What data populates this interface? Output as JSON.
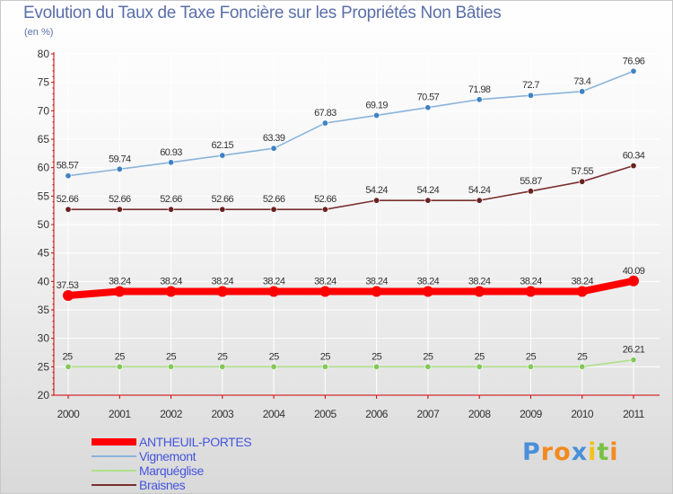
{
  "colors": {
    "axis": "#cc0000",
    "grid": "#ffffff",
    "tick_text": "#333333",
    "data_label": "#333333"
  },
  "chart_data": {
    "type": "line",
    "title": "Evolution du Taux de Taxe Foncière sur les Propriétés Non Bâties",
    "subtitle": "(en %)",
    "xlabel": "",
    "ylabel": "",
    "categories": [
      "2000",
      "2001",
      "2002",
      "2003",
      "2004",
      "2005",
      "2006",
      "2007",
      "2008",
      "2009",
      "2010",
      "2011"
    ],
    "ylim": [
      20,
      80
    ],
    "yticks": [
      20,
      25,
      30,
      35,
      40,
      45,
      50,
      55,
      60,
      65,
      70,
      75,
      80
    ],
    "legend_position": "bottom-left",
    "series": [
      {
        "name": "ANTHEUIL-PORTES",
        "color": "#ff0000",
        "marker": "#ff0000",
        "emphasis": true,
        "values": [
          37.53,
          38.24,
          38.24,
          38.24,
          38.24,
          38.24,
          38.24,
          38.24,
          38.24,
          38.24,
          38.24,
          40.09
        ],
        "labels": [
          "37.53",
          "38.24",
          "38.24",
          "38.24",
          "38.24",
          "38.24",
          "38.24",
          "38.24",
          "38.24",
          "38.24",
          "38.24",
          "40.09"
        ]
      },
      {
        "name": "Vignemont",
        "color": "#8bb3db",
        "marker": "#3f83c4",
        "emphasis": false,
        "values": [
          58.57,
          59.74,
          60.93,
          62.15,
          63.39,
          67.83,
          69.19,
          70.57,
          71.98,
          72.7,
          73.4,
          76.96
        ],
        "labels": [
          "58.57",
          "59.74",
          "60.93",
          "62.15",
          "63.39",
          "67.83",
          "69.19",
          "70.57",
          "71.98",
          "72.7",
          "73.4",
          "76.96"
        ]
      },
      {
        "name": "Marquéglise",
        "color": "#aee08a",
        "marker": "#84c858",
        "emphasis": false,
        "values": [
          25,
          25,
          25,
          25,
          25,
          25,
          25,
          25,
          25,
          25,
          25,
          26.21
        ],
        "labels": [
          "25",
          "25",
          "25",
          "25",
          "25",
          "25",
          "25",
          "25",
          "25",
          "25",
          "25",
          "26.21"
        ]
      },
      {
        "name": "Braisnes",
        "color": "#7a2f2f",
        "marker": "#6a2020",
        "emphasis": false,
        "values": [
          52.66,
          52.66,
          52.66,
          52.66,
          52.66,
          52.66,
          54.24,
          54.24,
          54.24,
          55.87,
          57.55,
          60.34
        ],
        "labels": [
          "52.66",
          "52.66",
          "52.66",
          "52.66",
          "52.66",
          "52.66",
          "54.24",
          "54.24",
          "54.24",
          "55.87",
          "57.55",
          "60.34"
        ]
      }
    ]
  },
  "legend": {
    "items": [
      {
        "label": "ANTHEUIL-PORTES",
        "color": "#ff0000"
      },
      {
        "label": "Vignemont",
        "color": "#8bb3db"
      },
      {
        "label": "Marquéglise",
        "color": "#aee08a"
      },
      {
        "label": "Braisnes",
        "color": "#7a2f2f"
      }
    ]
  },
  "logo": {
    "text": "Proxiti",
    "letters": [
      "P",
      "r",
      "o",
      "x",
      "i",
      "t",
      "i"
    ],
    "letter_colors": [
      "#4a8fd8",
      "#f28a1f",
      "#f28a1f",
      "#4a8fd8",
      "#f2c21f",
      "#7ac142",
      "#f28a1f"
    ]
  }
}
